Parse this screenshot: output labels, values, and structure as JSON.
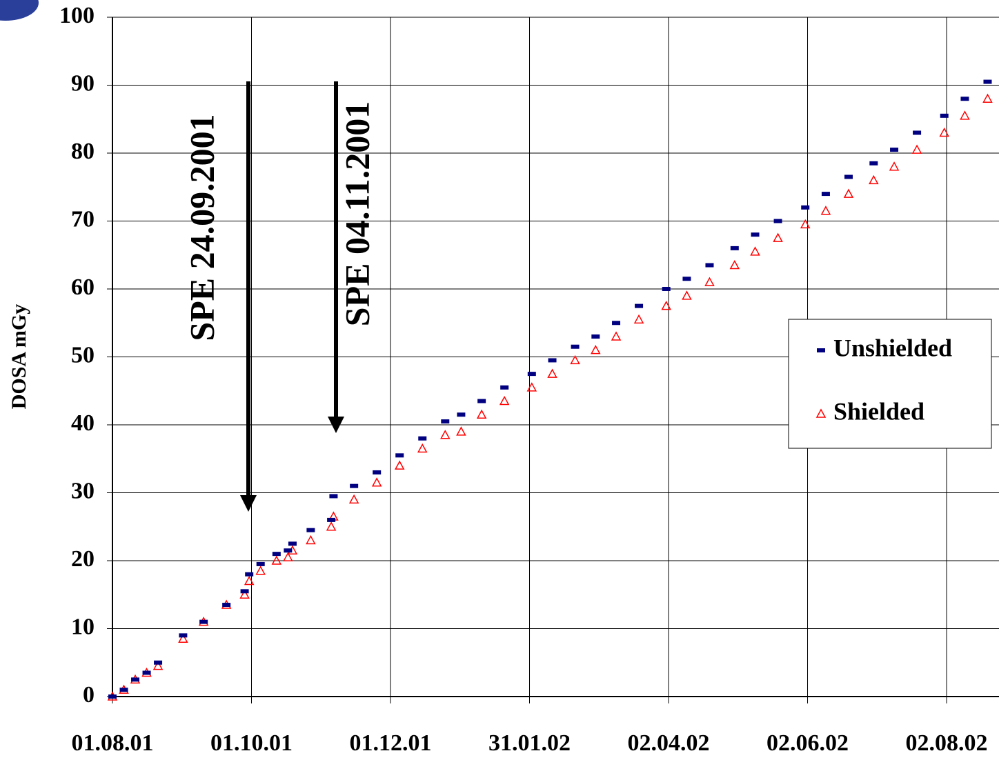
{
  "chart_data": {
    "type": "scatter",
    "ylabel": "DOSA mGy",
    "annotations": [
      "SPE  24.09.2001",
      "SPE  04.11.2001"
    ],
    "xlim": [
      "01.08.01",
      "25.08.02"
    ],
    "xticks": [
      "01.08.01",
      "01.10.01",
      "01.12.01",
      "31.01.02",
      "02.04.02",
      "02.06.02",
      "02.08.02"
    ],
    "ylim": [
      0,
      100
    ],
    "yticks": [
      0,
      10,
      20,
      30,
      40,
      50,
      60,
      70,
      80,
      90,
      100
    ],
    "grid": true,
    "legend": "right",
    "x": [
      "01.08.01",
      "06.08.01",
      "11.08.01",
      "16.08.01",
      "21.08.01",
      "01.09.01",
      "10.09.01",
      "20.09.01",
      "28.09.01",
      "30.09.01",
      "05.10.01",
      "12.10.01",
      "17.10.01",
      "19.10.01",
      "27.10.01",
      "05.11.01",
      "06.11.01",
      "15.11.01",
      "25.11.01",
      "05.12.01",
      "15.12.01",
      "25.12.01",
      "01.01.02",
      "10.01.02",
      "20.01.02",
      "01.02.02",
      "10.02.02",
      "20.02.02",
      "01.03.02",
      "10.03.02",
      "20.03.02",
      "01.04.02",
      "10.04.02",
      "20.04.02",
      "01.05.02",
      "10.05.02",
      "20.05.02",
      "01.06.02",
      "10.06.02",
      "20.06.02",
      "01.07.02",
      "10.07.02",
      "20.07.02",
      "01.08.02",
      "10.08.02",
      "20.08.02"
    ],
    "series": [
      {
        "name": "Unshielded",
        "color": "#000080",
        "marker": "dash",
        "values": [
          0,
          1,
          2.5,
          3.5,
          5,
          9,
          11,
          13.5,
          15.5,
          18,
          19.5,
          21,
          21.5,
          22.5,
          24.5,
          26,
          29.5,
          31,
          33,
          35.5,
          38,
          40.5,
          41.5,
          43.5,
          45.5,
          47.5,
          49.5,
          51.5,
          53,
          55,
          57.5,
          60,
          61.5,
          63.5,
          66,
          68,
          70,
          72,
          74,
          76.5,
          78.5,
          80.5,
          83,
          85.5,
          88,
          90.5
        ]
      },
      {
        "name": "Shielded",
        "color": "#ff0000",
        "marker": "triangle",
        "values": [
          0,
          1,
          2.5,
          3.5,
          4.5,
          8.5,
          11,
          13.5,
          15,
          17,
          18.5,
          20,
          20.5,
          21.5,
          23,
          25,
          26.5,
          29,
          31.5,
          34,
          36.5,
          38.5,
          39,
          41.5,
          43.5,
          45.5,
          47.5,
          49.5,
          51,
          53,
          55.5,
          57.5,
          59,
          61,
          63.5,
          65.5,
          67.5,
          69.5,
          71.5,
          74,
          76,
          78,
          80.5,
          83,
          85.5,
          88
        ]
      }
    ]
  }
}
